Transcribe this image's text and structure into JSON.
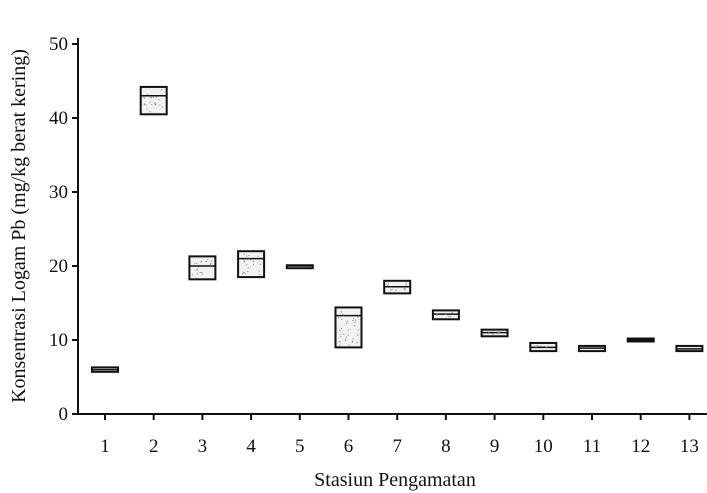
{
  "chart_data": {
    "type": "box",
    "title": "",
    "xlabel": "Stasiun Pengamatan",
    "ylabel": "Konsentrasi Logam Pb (mg/kg berat kering)",
    "ylim": [
      0,
      50
    ],
    "yticks": [
      0,
      10,
      20,
      30,
      40,
      50
    ],
    "categories": [
      "1",
      "2",
      "3",
      "4",
      "5",
      "6",
      "7",
      "8",
      "9",
      "10",
      "11",
      "12",
      "13"
    ],
    "series": [
      {
        "boxes": [
          {
            "low": 5.7,
            "median": 6.0,
            "high": 6.3
          },
          {
            "low": 40.5,
            "median": 43.0,
            "high": 44.2
          },
          {
            "low": 18.2,
            "median": 20.0,
            "high": 21.3
          },
          {
            "low": 18.5,
            "median": 21.0,
            "high": 22.0
          },
          {
            "low": 19.7,
            "median": 20.0,
            "high": 20.1
          },
          {
            "low": 9.0,
            "median": 13.3,
            "high": 14.4
          },
          {
            "low": 16.3,
            "median": 17.2,
            "high": 18.0
          },
          {
            "low": 12.8,
            "median": 13.5,
            "high": 14.0
          },
          {
            "low": 10.5,
            "median": 11.0,
            "high": 11.4
          },
          {
            "low": 8.5,
            "median": 9.0,
            "high": 9.6
          },
          {
            "low": 8.5,
            "median": 8.9,
            "high": 9.2
          },
          {
            "low": 9.8,
            "median": 10.0,
            "high": 10.2
          },
          {
            "low": 8.5,
            "median": 8.8,
            "high": 9.2
          }
        ]
      }
    ],
    "grid": false,
    "colors": {
      "box_fill": "#f2f2f2",
      "stroke": "#111111",
      "dots": "#888888"
    }
  }
}
